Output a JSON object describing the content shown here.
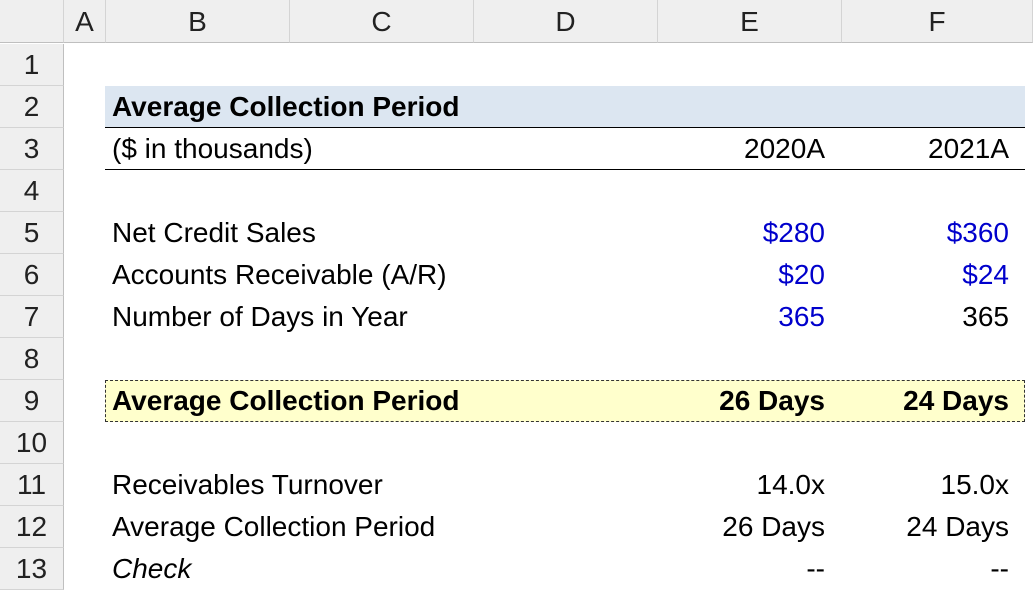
{
  "sheet": {
    "columns": [
      "A",
      "B",
      "C",
      "D",
      "E",
      "F"
    ],
    "rows": [
      "1",
      "2",
      "3",
      "4",
      "5",
      "6",
      "7",
      "8",
      "9",
      "10",
      "11",
      "12",
      "13"
    ],
    "title": "Average Collection Period",
    "units_label": "($ in thousands)",
    "periods": [
      "2020A",
      "2021A"
    ],
    "lines": {
      "net_credit_sales": {
        "label": "Net Credit Sales",
        "e": "$280",
        "f": "$360"
      },
      "accounts_receivable": {
        "label": "Accounts Receivable (A/R)",
        "e": "$20",
        "f": "$24"
      },
      "days_in_year": {
        "label": "Number of Days in Year",
        "e": "365",
        "f": "365"
      },
      "acp_result": {
        "label": "Average Collection Period",
        "e": "26 Days",
        "f": "24 Days"
      },
      "receivables_turnover": {
        "label": "Receivables Turnover",
        "e": "14.0x",
        "f": "15.0x"
      },
      "acp_check_calc": {
        "label": "Average Collection Period",
        "e": "26 Days",
        "f": "24 Days"
      },
      "check": {
        "label": "Check",
        "e": "--",
        "f": "--"
      }
    }
  },
  "colors": {
    "input_blue": "#0000cc",
    "title_fill": "#dce6f1",
    "highlight_fill": "#ffffcc",
    "header_fill": "#efefef"
  }
}
